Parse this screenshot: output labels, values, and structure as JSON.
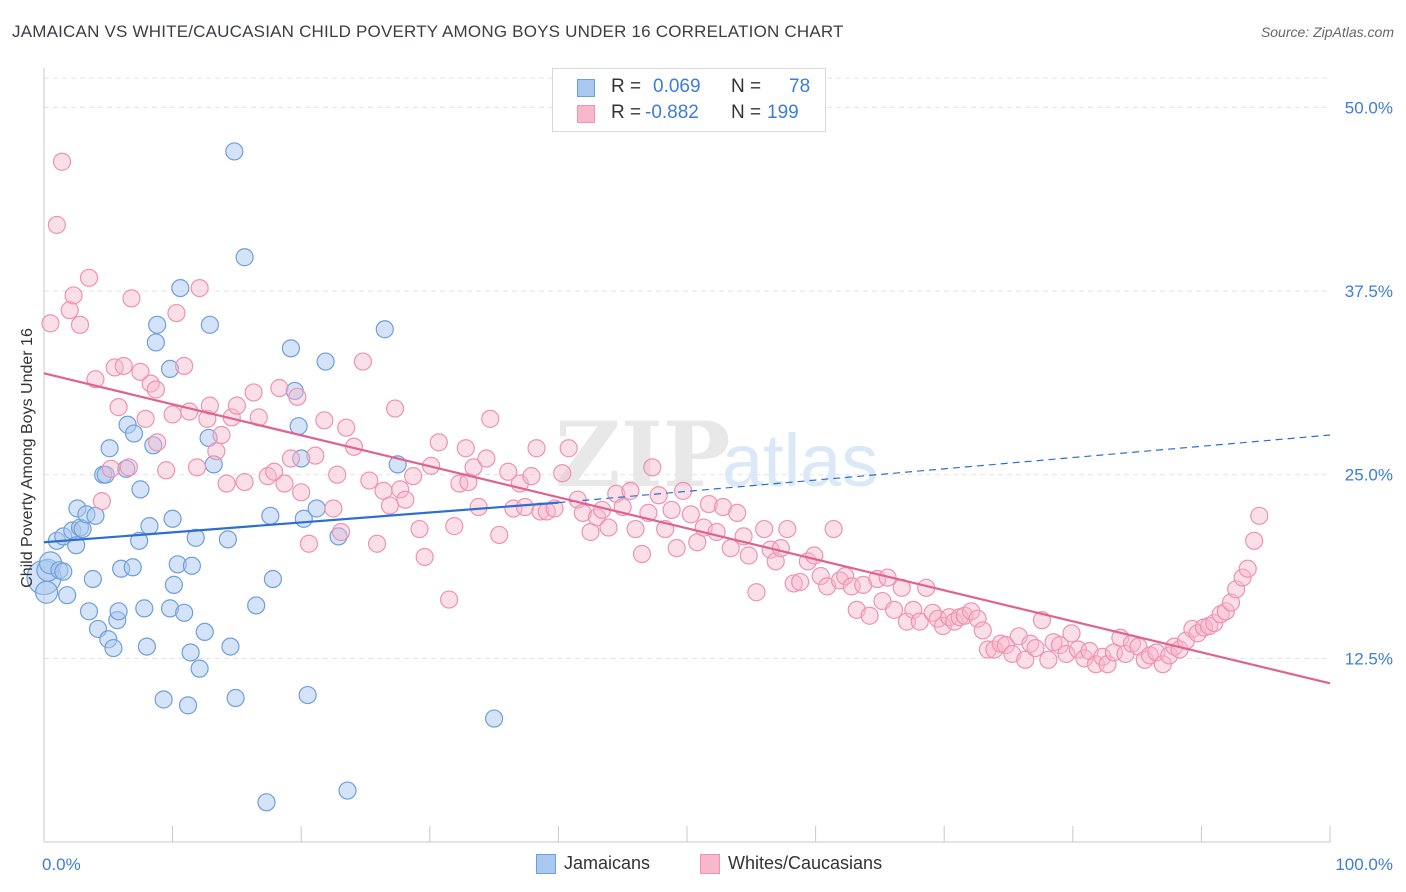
{
  "title": "JAMAICAN VS WHITE/CAUCASIAN CHILD POVERTY AMONG BOYS UNDER 16 CORRELATION CHART",
  "source": "Source: ZipAtlas.com",
  "watermark": {
    "zip": "ZIP",
    "atlas": "atlas"
  },
  "legend": {
    "r_label": "R =",
    "n_label": "N =",
    "rows": [
      {
        "r": "0.069",
        "n": "78"
      },
      {
        "r": "-0.882",
        "n": "199"
      }
    ]
  },
  "bottom_legend": [
    {
      "label": "Jamaicans"
    },
    {
      "label": "Whites/Caucasians"
    }
  ],
  "colors": {
    "blue_fill": "#a9c8ef",
    "blue_stroke": "#6f9fdc",
    "blue_line": "#2d6fd0",
    "pink_fill": "#f7b8cb",
    "pink_stroke": "#ee93b0",
    "pink_line": "#e0628f",
    "tick_text": "#3b7dd8",
    "grid": "#e3e3e3"
  },
  "chart_data": {
    "type": "scatter",
    "title": "JAMAICAN VS WHITE/CAUCASIAN CHILD POVERTY AMONG BOYS UNDER 16 CORRELATION CHART",
    "xlabel": "",
    "ylabel": "Child Poverty Among Boys Under 16",
    "xlim": [
      0,
      100
    ],
    "ylim": [
      0,
      52
    ],
    "x_tick_labels": [
      "0.0%",
      "100.0%"
    ],
    "y_ticks": [
      12.5,
      25.0,
      37.5,
      50.0
    ],
    "y_tick_labels": [
      "12.5%",
      "25.0%",
      "37.5%",
      "50.0%"
    ],
    "grid": true,
    "legend_position": "top-center",
    "series": [
      {
        "name": "Jamaicans",
        "r": 0.069,
        "n": 78,
        "trend_solid": [
          [
            0,
            20.4
          ],
          [
            40,
            23.1
          ]
        ],
        "trend_dashed": [
          [
            40,
            23.1
          ],
          [
            100,
            27.7
          ]
        ],
        "points": [
          [
            0,
            18
          ],
          [
            0.2,
            17
          ],
          [
            0.3,
            18.5
          ],
          [
            0.5,
            19
          ],
          [
            1,
            20.5
          ],
          [
            1.2,
            18.5
          ],
          [
            1.5,
            20.8
          ],
          [
            1.5,
            18.4
          ],
          [
            1.8,
            16.8
          ],
          [
            2.2,
            21.2
          ],
          [
            2.5,
            20.2
          ],
          [
            2.6,
            22.7
          ],
          [
            2.8,
            21.4
          ],
          [
            3.0,
            21.3
          ],
          [
            3.3,
            22.3
          ],
          [
            3.5,
            15.7
          ],
          [
            3.8,
            17.9
          ],
          [
            4.0,
            22.2
          ],
          [
            4.2,
            14.5
          ],
          [
            4.6,
            25.0
          ],
          [
            4.8,
            25.0
          ],
          [
            5.0,
            13.8
          ],
          [
            5.1,
            26.8
          ],
          [
            5.4,
            13.2
          ],
          [
            5.7,
            15.1
          ],
          [
            5.8,
            15.7
          ],
          [
            6.0,
            18.6
          ],
          [
            6.4,
            25.4
          ],
          [
            6.5,
            28.4
          ],
          [
            6.9,
            18.7
          ],
          [
            7.0,
            27.8
          ],
          [
            7.4,
            20.5
          ],
          [
            7.5,
            24.0
          ],
          [
            7.8,
            15.9
          ],
          [
            8.0,
            13.3
          ],
          [
            8.2,
            21.5
          ],
          [
            8.5,
            27.0
          ],
          [
            8.7,
            34.0
          ],
          [
            8.8,
            35.2
          ],
          [
            9.3,
            9.7
          ],
          [
            9.8,
            32.2
          ],
          [
            9.8,
            15.9
          ],
          [
            10.0,
            22.0
          ],
          [
            10.1,
            17.5
          ],
          [
            10.4,
            18.9
          ],
          [
            10.6,
            37.7
          ],
          [
            10.9,
            15.6
          ],
          [
            11.2,
            9.3
          ],
          [
            11.4,
            12.9
          ],
          [
            11.5,
            18.8
          ],
          [
            11.8,
            20.7
          ],
          [
            12.1,
            11.8
          ],
          [
            12.5,
            14.3
          ],
          [
            12.8,
            27.5
          ],
          [
            12.9,
            35.2
          ],
          [
            13.2,
            25.7
          ],
          [
            14.3,
            20.6
          ],
          [
            14.5,
            13.3
          ],
          [
            14.8,
            47.0
          ],
          [
            14.9,
            9.8
          ],
          [
            15.6,
            39.8
          ],
          [
            16.5,
            16.1
          ],
          [
            17.3,
            2.7
          ],
          [
            17.6,
            22.2
          ],
          [
            17.8,
            17.9
          ],
          [
            19.2,
            33.6
          ],
          [
            19.5,
            30.7
          ],
          [
            19.8,
            28.3
          ],
          [
            20.0,
            26.1
          ],
          [
            20.2,
            22.0
          ],
          [
            20.5,
            10.0
          ],
          [
            21.2,
            22.7
          ],
          [
            21.9,
            32.7
          ],
          [
            22.9,
            20.8
          ],
          [
            23.6,
            3.5
          ],
          [
            26.5,
            34.9
          ],
          [
            27.5,
            25.7
          ],
          [
            35.0,
            8.4
          ]
        ]
      },
      {
        "name": "Whites/Caucasians",
        "r": -0.882,
        "n": 199,
        "trend_solid": [
          [
            0,
            31.9
          ],
          [
            100,
            10.8
          ]
        ],
        "points": [
          [
            0.5,
            35.3
          ],
          [
            1.0,
            42.0
          ],
          [
            1.4,
            46.3
          ],
          [
            2.0,
            36.2
          ],
          [
            2.3,
            37.2
          ],
          [
            2.8,
            35.2
          ],
          [
            3.5,
            38.4
          ],
          [
            4.0,
            31.5
          ],
          [
            4.5,
            23.2
          ],
          [
            5.2,
            25.4
          ],
          [
            5.5,
            32.3
          ],
          [
            5.8,
            29.6
          ],
          [
            6.2,
            32.4
          ],
          [
            6.6,
            25.5
          ],
          [
            6.8,
            37.0
          ],
          [
            7.5,
            32.0
          ],
          [
            7.9,
            28.8
          ],
          [
            8.3,
            31.2
          ],
          [
            8.7,
            30.8
          ],
          [
            8.8,
            27.2
          ],
          [
            9.5,
            25.3
          ],
          [
            10.0,
            29.1
          ],
          [
            10.3,
            36.0
          ],
          [
            10.9,
            32.4
          ],
          [
            11.3,
            29.3
          ],
          [
            11.9,
            25.5
          ],
          [
            12.1,
            37.7
          ],
          [
            12.7,
            28.8
          ],
          [
            12.9,
            29.7
          ],
          [
            13.4,
            26.6
          ],
          [
            13.8,
            27.7
          ],
          [
            14.2,
            24.4
          ],
          [
            14.6,
            28.9
          ],
          [
            15.0,
            29.7
          ],
          [
            15.6,
            24.5
          ],
          [
            16.3,
            30.6
          ],
          [
            16.7,
            28.9
          ],
          [
            17.4,
            24.9
          ],
          [
            17.9,
            25.2
          ],
          [
            18.3,
            30.9
          ],
          [
            18.7,
            24.4
          ],
          [
            19.2,
            26.1
          ],
          [
            19.7,
            30.3
          ],
          [
            20.0,
            23.8
          ],
          [
            20.6,
            20.3
          ],
          [
            21.1,
            26.3
          ],
          [
            21.8,
            28.7
          ],
          [
            22.5,
            22.7
          ],
          [
            22.8,
            25.0
          ],
          [
            23.1,
            21.1
          ],
          [
            23.5,
            28.2
          ],
          [
            24.1,
            26.9
          ],
          [
            24.8,
            32.7
          ],
          [
            25.3,
            24.6
          ],
          [
            25.9,
            20.3
          ],
          [
            26.4,
            23.9
          ],
          [
            26.9,
            22.9
          ],
          [
            27.3,
            29.5
          ],
          [
            27.7,
            24.0
          ],
          [
            28.1,
            23.3
          ],
          [
            28.7,
            24.9
          ],
          [
            29.2,
            21.3
          ],
          [
            29.6,
            19.4
          ],
          [
            30.1,
            25.6
          ],
          [
            30.7,
            27.2
          ],
          [
            31.5,
            16.5
          ],
          [
            31.9,
            21.5
          ],
          [
            32.3,
            24.4
          ],
          [
            32.8,
            26.8
          ],
          [
            33.0,
            24.5
          ],
          [
            33.4,
            25.5
          ],
          [
            33.8,
            22.8
          ],
          [
            34.4,
            26.1
          ],
          [
            34.7,
            28.8
          ],
          [
            35.4,
            20.9
          ],
          [
            36.1,
            25.2
          ],
          [
            36.5,
            22.7
          ],
          [
            37.0,
            24.4
          ],
          [
            37.4,
            22.8
          ],
          [
            37.9,
            24.9
          ],
          [
            38.3,
            26.8
          ],
          [
            38.6,
            22.5
          ],
          [
            39.1,
            22.5
          ],
          [
            39.7,
            22.7
          ],
          [
            40.3,
            25.1
          ],
          [
            40.8,
            26.8
          ],
          [
            41.5,
            23.3
          ],
          [
            41.9,
            22.4
          ],
          [
            42.5,
            21.1
          ],
          [
            43.0,
            22.1
          ],
          [
            43.4,
            22.6
          ],
          [
            43.9,
            21.4
          ],
          [
            44.5,
            23.7
          ],
          [
            45.0,
            22.8
          ],
          [
            45.6,
            23.9
          ],
          [
            46.0,
            21.3
          ],
          [
            46.5,
            19.6
          ],
          [
            47.0,
            22.4
          ],
          [
            47.3,
            25.5
          ],
          [
            47.8,
            23.6
          ],
          [
            48.3,
            21.3
          ],
          [
            48.8,
            22.6
          ],
          [
            49.2,
            20.0
          ],
          [
            49.7,
            23.9
          ],
          [
            50.3,
            22.3
          ],
          [
            50.8,
            20.4
          ],
          [
            51.3,
            21.4
          ],
          [
            51.7,
            23.0
          ],
          [
            52.3,
            21.1
          ],
          [
            52.8,
            22.8
          ],
          [
            53.4,
            20.0
          ],
          [
            53.9,
            22.4
          ],
          [
            54.4,
            20.8
          ],
          [
            54.8,
            19.5
          ],
          [
            55.4,
            17.0
          ],
          [
            56.0,
            21.3
          ],
          [
            56.5,
            19.9
          ],
          [
            56.9,
            19.1
          ],
          [
            57.3,
            20.0
          ],
          [
            57.8,
            21.3
          ],
          [
            58.3,
            17.6
          ],
          [
            58.8,
            17.7
          ],
          [
            59.4,
            19.1
          ],
          [
            59.9,
            19.5
          ],
          [
            60.4,
            18.1
          ],
          [
            60.9,
            17.4
          ],
          [
            61.4,
            21.3
          ],
          [
            61.9,
            17.8
          ],
          [
            62.3,
            18.1
          ],
          [
            62.8,
            17.4
          ],
          [
            63.2,
            15.8
          ],
          [
            63.7,
            17.5
          ],
          [
            64.2,
            15.4
          ],
          [
            64.8,
            17.9
          ],
          [
            65.2,
            16.4
          ],
          [
            65.6,
            18.0
          ],
          [
            66.1,
            15.8
          ],
          [
            66.7,
            17.3
          ],
          [
            67.1,
            15.0
          ],
          [
            67.6,
            15.8
          ],
          [
            68.1,
            15.0
          ],
          [
            68.6,
            17.3
          ],
          [
            69.1,
            15.6
          ],
          [
            69.5,
            15.2
          ],
          [
            69.9,
            14.7
          ],
          [
            70.4,
            15.3
          ],
          [
            70.8,
            15.0
          ],
          [
            71.2,
            15.3
          ],
          [
            71.6,
            15.4
          ],
          [
            72.1,
            15.7
          ],
          [
            72.6,
            15.2
          ],
          [
            73.0,
            14.4
          ],
          [
            73.4,
            13.1
          ],
          [
            73.9,
            13.1
          ],
          [
            74.4,
            13.5
          ],
          [
            74.8,
            13.4
          ],
          [
            75.3,
            12.8
          ],
          [
            75.8,
            14.0
          ],
          [
            76.3,
            12.4
          ],
          [
            76.7,
            13.5
          ],
          [
            77.1,
            13.2
          ],
          [
            77.6,
            15.1
          ],
          [
            78.1,
            12.4
          ],
          [
            78.5,
            13.6
          ],
          [
            79.0,
            13.4
          ],
          [
            79.5,
            12.8
          ],
          [
            79.9,
            14.2
          ],
          [
            80.4,
            13.1
          ],
          [
            80.9,
            12.5
          ],
          [
            81.3,
            13.0
          ],
          [
            81.8,
            12.1
          ],
          [
            82.3,
            12.6
          ],
          [
            82.7,
            12.1
          ],
          [
            83.2,
            12.9
          ],
          [
            83.7,
            13.9
          ],
          [
            84.1,
            12.8
          ],
          [
            84.6,
            13.5
          ],
          [
            85.1,
            13.3
          ],
          [
            85.6,
            12.4
          ],
          [
            86.0,
            12.7
          ],
          [
            86.5,
            12.9
          ],
          [
            87.0,
            12.1
          ],
          [
            87.5,
            12.7
          ],
          [
            87.9,
            13.3
          ],
          [
            88.3,
            13.1
          ],
          [
            88.8,
            13.7
          ],
          [
            89.3,
            14.5
          ],
          [
            89.7,
            14.2
          ],
          [
            90.2,
            14.6
          ],
          [
            90.6,
            14.7
          ],
          [
            91.0,
            14.9
          ],
          [
            91.5,
            15.5
          ],
          [
            91.9,
            15.7
          ],
          [
            92.3,
            16.3
          ],
          [
            92.7,
            17.2
          ],
          [
            93.2,
            18.0
          ],
          [
            93.6,
            18.6
          ],
          [
            94.1,
            20.5
          ],
          [
            94.5,
            22.2
          ]
        ]
      }
    ]
  }
}
